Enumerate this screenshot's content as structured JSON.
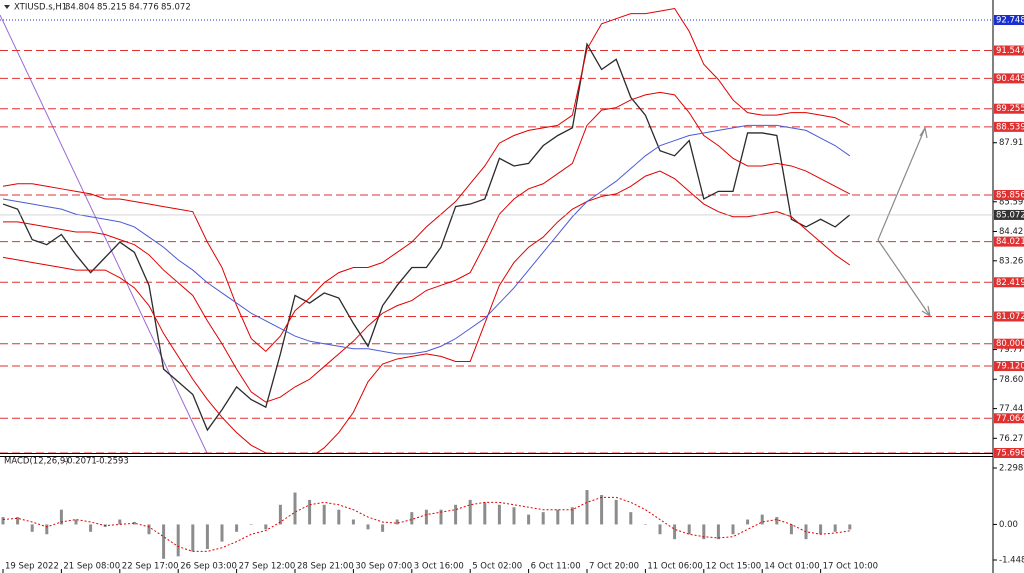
{
  "chart_data": [
    {
      "type": "line",
      "title": "XTIUSD.s,H1",
      "last_bar": {
        "open": 84.804,
        "high": 85.215,
        "low": 84.776
      },
      "categories": [
        "19 Sep 2022",
        null,
        null,
        null,
        "21 Sep 08:00",
        null,
        null,
        null,
        "22 Sep 17:00",
        null,
        null,
        null,
        "26 Sep 03:00",
        null,
        null,
        null,
        "27 Sep 12:00",
        null,
        null,
        null,
        "28 Sep 21:00",
        null,
        null,
        null,
        "30 Sep 07:00",
        null,
        null,
        null,
        "3 Oct 16:00",
        null,
        null,
        null,
        "5 Oct 02:00",
        null,
        null,
        null,
        "6 Oct 11:00",
        null,
        null,
        null,
        "7 Oct 20:00",
        null,
        null,
        null,
        "11 Oct 06:00",
        null,
        null,
        null,
        "12 Oct 15:00",
        null,
        null,
        null,
        "14 Oct 01:00",
        null,
        null,
        null,
        "17 Oct 10:00",
        null,
        null
      ],
      "series": [
        {
          "color": "#2b2b2b",
          "values": [
            85.5,
            85.3,
            84.1,
            83.9,
            84.3,
            83.5,
            82.8,
            83.4,
            84.0,
            83.6,
            82.3,
            79.0,
            78.5,
            78.0,
            76.6,
            77.4,
            78.3,
            77.8,
            77.5,
            79.6,
            81.9,
            81.6,
            82.0,
            81.8,
            80.8,
            79.9,
            81.5,
            82.3,
            83.0,
            83.0,
            83.8,
            85.4,
            85.5,
            85.7,
            87.3,
            87.0,
            87.1,
            87.8,
            88.2,
            88.5,
            91.8,
            90.8,
            91.2,
            89.7,
            89.0,
            87.6,
            87.4,
            88.0,
            85.7,
            86.0,
            86.0,
            88.3,
            88.3,
            88.2,
            84.9,
            84.6,
            84.9,
            84.6,
            85.072
          ]
        },
        {
          "color": "#e00000",
          "values": [
            86.2,
            86.3,
            86.3,
            86.2,
            86.1,
            86.0,
            85.9,
            85.7,
            85.7,
            85.6,
            85.5,
            85.4,
            85.3,
            85.2,
            84.0,
            83.0,
            81.5,
            80.2,
            79.7,
            80.3,
            81.3,
            81.8,
            82.4,
            82.8,
            83.0,
            83.0,
            83.2,
            83.6,
            84.0,
            84.6,
            85.1,
            85.6,
            86.3,
            87.0,
            87.9,
            88.2,
            88.4,
            88.5,
            88.6,
            89.0,
            91.6,
            92.6,
            92.8,
            93.0,
            93.0,
            93.1,
            93.2,
            92.3,
            91.0,
            90.4,
            89.6,
            89.1,
            89.0,
            89.0,
            89.1,
            89.1,
            89.0,
            88.9,
            88.6
          ]
        },
        {
          "color": "#e00000",
          "values": [
            84.8,
            84.8,
            84.7,
            84.6,
            84.5,
            84.4,
            84.4,
            84.3,
            84.1,
            83.9,
            83.5,
            82.9,
            82.4,
            81.9,
            80.9,
            80.0,
            79.0,
            78.1,
            77.7,
            77.9,
            78.3,
            78.6,
            79.1,
            79.6,
            80.1,
            80.7,
            81.2,
            81.5,
            81.7,
            82.1,
            82.3,
            82.5,
            82.8,
            83.9,
            85.1,
            85.7,
            86.1,
            86.3,
            86.7,
            87.1,
            88.6,
            89.2,
            89.3,
            89.6,
            89.8,
            89.9,
            89.8,
            89.1,
            88.2,
            87.8,
            87.3,
            87.0,
            87.0,
            87.1,
            87.0,
            86.8,
            86.5,
            86.2,
            85.9
          ]
        },
        {
          "color": "#e00000",
          "values": [
            83.4,
            83.3,
            83.2,
            83.1,
            83.0,
            82.9,
            82.9,
            82.9,
            82.6,
            82.2,
            81.5,
            80.4,
            79.5,
            78.6,
            77.8,
            77.1,
            76.5,
            76.0,
            75.7,
            75.5,
            75.4,
            75.5,
            75.9,
            76.5,
            77.3,
            78.5,
            79.2,
            79.4,
            79.5,
            79.6,
            79.5,
            79.3,
            79.3,
            80.8,
            82.3,
            83.2,
            83.8,
            84.2,
            84.8,
            85.3,
            85.6,
            85.8,
            85.9,
            86.2,
            86.6,
            86.8,
            86.5,
            86.0,
            85.5,
            85.2,
            85.0,
            85.0,
            85.1,
            85.2,
            85.0,
            84.5,
            84.0,
            83.5,
            83.1
          ]
        },
        {
          "color": "#4a5bd6",
          "values": [
            85.7,
            85.6,
            85.5,
            85.4,
            85.3,
            85.1,
            85.0,
            84.9,
            84.8,
            84.6,
            84.2,
            83.8,
            83.3,
            82.9,
            82.4,
            82.0,
            81.6,
            81.2,
            80.9,
            80.6,
            80.3,
            80.1,
            80.0,
            79.9,
            79.8,
            79.8,
            79.7,
            79.6,
            79.6,
            79.7,
            79.9,
            80.2,
            80.6,
            81.0,
            81.6,
            82.2,
            82.9,
            83.6,
            84.3,
            85.0,
            85.6,
            86.0,
            86.4,
            86.9,
            87.4,
            87.8,
            88.0,
            88.2,
            88.3,
            88.4,
            88.5,
            88.6,
            88.6,
            88.6,
            88.5,
            88.4,
            88.1,
            87.8,
            87.4
          ]
        }
      ],
      "ylim": [
        75.696,
        93.536
      ],
      "yticks": [
        87.915,
        {
          "value": 85.59,
          "label": "85.590"
        },
        {
          "value": 84.42,
          "label": "84.420"
        },
        83.265,
        {
          "value": 79.77,
          "label": "79.770"
        },
        {
          "value": 78.6,
          "label": "78.600"
        },
        77.445,
        76.275
      ],
      "top_level": {
        "value": 92.748,
        "color": "#1a2fd0"
      },
      "levels_color": "#e03030",
      "levels": [
        91.547,
        90.449,
        89.255,
        88.539,
        85.856,
        84.021,
        82.419,
        81.072,
        {
          "value": 80,
          "label": "80.000"
        },
        {
          "value": 79.12,
          "label": "79.120"
        },
        77.064,
        75.696
      ]
    },
    {
      "type": "macd",
      "title": "MACD(12,26,9)",
      "series": [
        {
          "color": "#8c8c8c",
          "values": [
            0.3,
            0.3,
            -0.3,
            -0.4,
            0.6,
            0.2,
            -0.3,
            -0.1,
            0.2,
            0.1,
            -0.4,
            -1.4,
            -1.3,
            -1.1,
            -1.0,
            -0.7,
            -0.3,
            0.0,
            -0.2,
            0.8,
            1.3,
            1.0,
            0.8,
            0.6,
            0.2,
            -0.2,
            -0.3,
            0.2,
            0.5,
            0.6,
            0.6,
            0.8,
            1.0,
            0.9,
            0.8,
            0.7,
            0.4,
            0.5,
            0.6,
            0.7,
            1.4,
            1.2,
            1.0,
            0.5,
            0.0,
            -0.4,
            -0.6,
            -0.4,
            -0.6,
            -0.6,
            -0.4,
            0.2,
            0.4,
            0.3,
            -0.4,
            -0.6,
            -0.4,
            -0.3,
            -0.2071
          ]
        },
        {
          "color": "#e00000",
          "values": [
            0.2,
            0.25,
            0.1,
            -0.1,
            0.1,
            0.2,
            0.1,
            -0.05,
            0.0,
            0.05,
            -0.1,
            -0.5,
            -0.9,
            -1.1,
            -1.1,
            -0.95,
            -0.7,
            -0.4,
            -0.25,
            0.1,
            0.5,
            0.8,
            0.9,
            0.8,
            0.6,
            0.3,
            0.1,
            0.05,
            0.2,
            0.4,
            0.5,
            0.6,
            0.8,
            0.9,
            0.9,
            0.8,
            0.7,
            0.6,
            0.6,
            0.6,
            0.9,
            1.1,
            1.1,
            0.9,
            0.6,
            0.2,
            -0.2,
            -0.4,
            -0.5,
            -0.55,
            -0.5,
            -0.2,
            0.1,
            0.2,
            0.0,
            -0.3,
            -0.4,
            -0.35,
            -0.2593
          ]
        }
      ],
      "ylim": [
        -1.4488,
        2.2987
      ],
      "yticks": [
        2.2987,
        {
          "value": 0,
          "label": "0.00"
        },
        -1.4488
      ]
    }
  ]
}
